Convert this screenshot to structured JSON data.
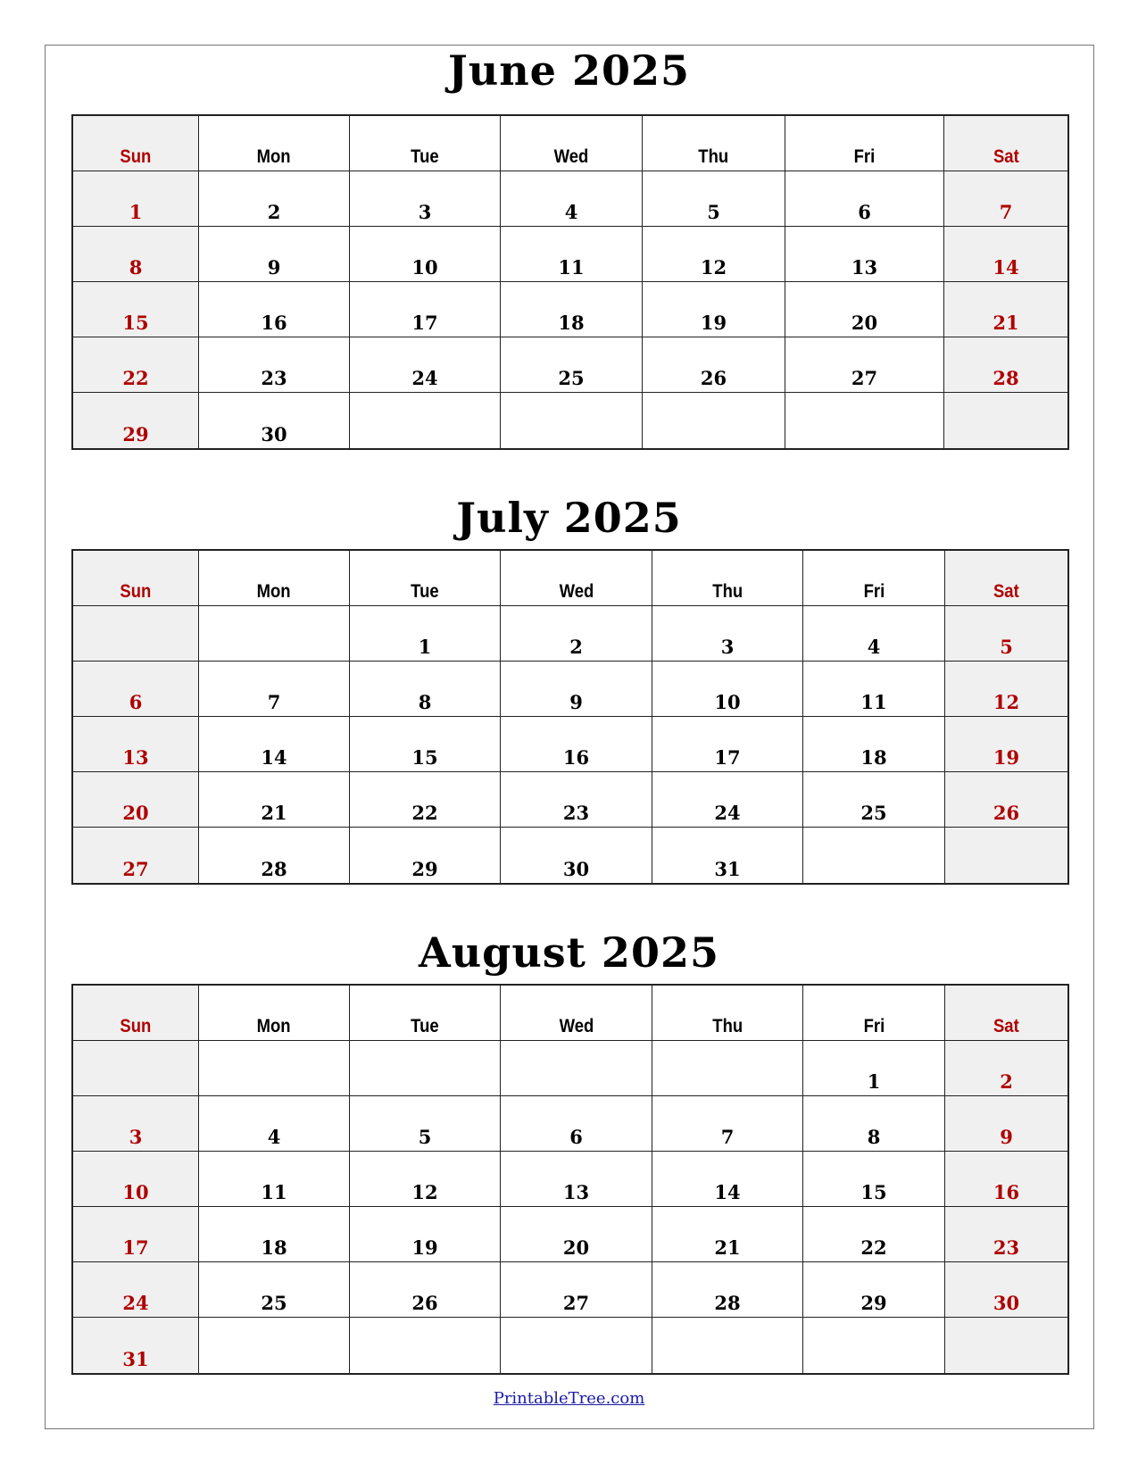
{
  "weekdays": [
    "Sun",
    "Mon",
    "Tue",
    "Wed",
    "Thu",
    "Fri",
    "Sat"
  ],
  "colors": {
    "weekend_text": "#b00000",
    "weekend_bg": "#f0f0f0",
    "link": "#1a1aa6"
  },
  "months": [
    {
      "title": "June 2025",
      "weeks": [
        [
          "1",
          "2",
          "3",
          "4",
          "5",
          "6",
          "7"
        ],
        [
          "8",
          "9",
          "10",
          "11",
          "12",
          "13",
          "14"
        ],
        [
          "15",
          "16",
          "17",
          "18",
          "19",
          "20",
          "21"
        ],
        [
          "22",
          "23",
          "24",
          "25",
          "26",
          "27",
          "28"
        ],
        [
          "29",
          "30",
          "",
          "",
          "",
          "",
          ""
        ]
      ]
    },
    {
      "title": "July 2025",
      "weeks": [
        [
          "",
          "",
          "1",
          "2",
          "3",
          "4",
          "5"
        ],
        [
          "6",
          "7",
          "8",
          "9",
          "10",
          "11",
          "12"
        ],
        [
          "13",
          "14",
          "15",
          "16",
          "17",
          "18",
          "19"
        ],
        [
          "20",
          "21",
          "22",
          "23",
          "24",
          "25",
          "26"
        ],
        [
          "27",
          "28",
          "29",
          "30",
          "31",
          "",
          ""
        ]
      ]
    },
    {
      "title": "August 2025",
      "weeks": [
        [
          "",
          "",
          "",
          "",
          "",
          "1",
          "2"
        ],
        [
          "3",
          "4",
          "5",
          "6",
          "7",
          "8",
          "9"
        ],
        [
          "10",
          "11",
          "12",
          "13",
          "14",
          "15",
          "16"
        ],
        [
          "17",
          "18",
          "19",
          "20",
          "21",
          "22",
          "23"
        ],
        [
          "24",
          "25",
          "26",
          "27",
          "28",
          "29",
          "30"
        ],
        [
          "31",
          "",
          "",
          "",
          "",
          "",
          ""
        ]
      ]
    }
  ],
  "footer": {
    "link_text": "PrintableTree.com"
  }
}
